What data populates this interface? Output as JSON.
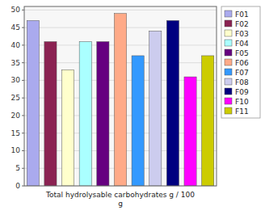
{
  "chart_data": {
    "type": "bar",
    "xlabel": "Total hydrolysable carbohydrates g / 100\ng",
    "categories": [
      "F01",
      "F02",
      "F03",
      "F04",
      "F05",
      "F06",
      "F07",
      "F08",
      "F09",
      "F10",
      "F11"
    ],
    "values": [
      47,
      41,
      33,
      41,
      41,
      49,
      37,
      44,
      47,
      31,
      37
    ],
    "colors": [
      "#aaaaee",
      "#8b2252",
      "#ffffcc",
      "#aaffff",
      "#660080",
      "#ffaa88",
      "#3399ff",
      "#ccccee",
      "#000080",
      "#ff00ff",
      "#cccc00"
    ],
    "ylim": [
      0,
      51
    ],
    "yticks": [
      0,
      5,
      10,
      15,
      20,
      25,
      30,
      35,
      40,
      45,
      50
    ],
    "grid": true,
    "legend": "right",
    "tick_labels": "y"
  }
}
